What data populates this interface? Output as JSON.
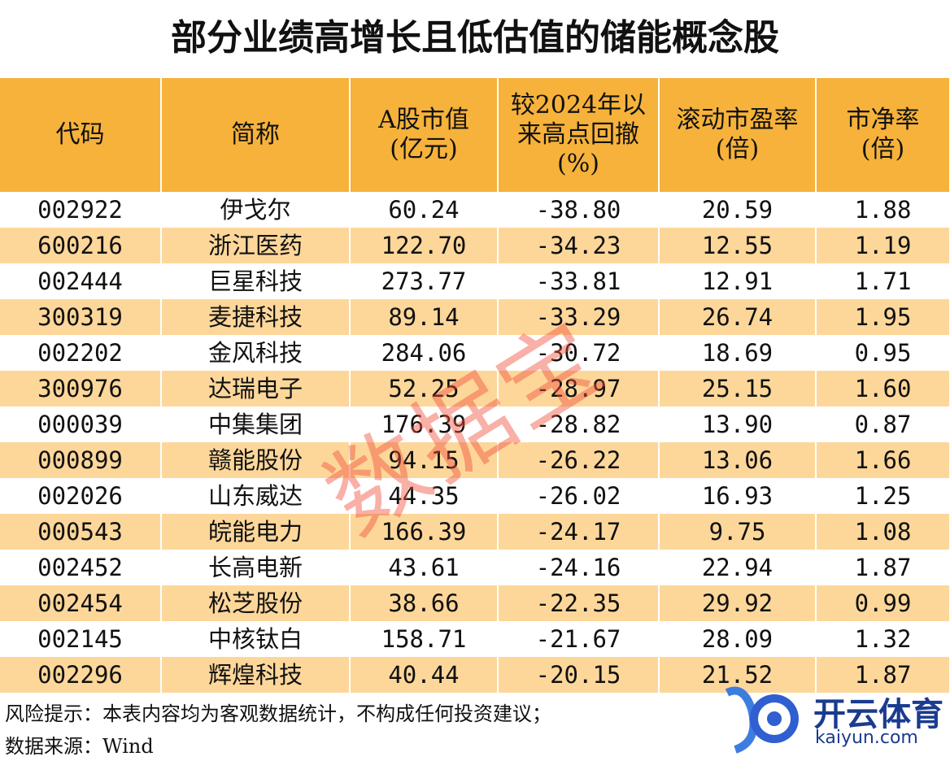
{
  "title": "部分业绩高增长且低估值的储能概念股",
  "table": {
    "header": [
      "代码",
      "简称",
      "A股市值\n(亿元)",
      "较2024年以\n来高点回撤\n(%)",
      "滚动市盈率\n(倍)",
      "市净率\n(倍)"
    ],
    "rows": [
      [
        "002922",
        "伊戈尔",
        "60.24",
        "-38.80",
        "20.59",
        "1.88"
      ],
      [
        "600216",
        "浙江医药",
        "122.70",
        "-34.23",
        "12.55",
        "1.19"
      ],
      [
        "002444",
        "巨星科技",
        "273.77",
        "-33.81",
        "12.91",
        "1.71"
      ],
      [
        "300319",
        "麦捷科技",
        "89.14",
        "-33.29",
        "26.74",
        "1.95"
      ],
      [
        "002202",
        "金风科技",
        "284.06",
        "-30.72",
        "18.69",
        "0.95"
      ],
      [
        "300976",
        "达瑞电子",
        "52.25",
        "-28.97",
        "25.15",
        "1.60"
      ],
      [
        "000039",
        "中集集团",
        "176.39",
        "-28.82",
        "13.90",
        "0.87"
      ],
      [
        "000899",
        "赣能股份",
        "94.15",
        "-26.22",
        "13.06",
        "1.66"
      ],
      [
        "002026",
        "山东威达",
        "44.35",
        "-26.02",
        "16.93",
        "1.25"
      ],
      [
        "000543",
        "皖能电力",
        "166.39",
        "-24.17",
        "9.75",
        "1.08"
      ],
      [
        "002452",
        "长高电新",
        "43.61",
        "-24.16",
        "22.94",
        "1.87"
      ],
      [
        "002454",
        "松芝股份",
        "38.66",
        "-22.35",
        "29.92",
        "0.99"
      ],
      [
        "002145",
        "中核钛白",
        "158.71",
        "-21.67",
        "28.09",
        "1.32"
      ],
      [
        "002296",
        "辉煌科技",
        "40.44",
        "-20.15",
        "21.52",
        "1.87"
      ]
    ]
  },
  "footer": {
    "note": "风险提示：本表内容均为客观数据统计，不构成任何投资建议；",
    "source": "数据来源：Wind"
  },
  "watermark": "数据宝",
  "logo": {
    "name": "开云体育",
    "url": "kaiyun.com"
  }
}
